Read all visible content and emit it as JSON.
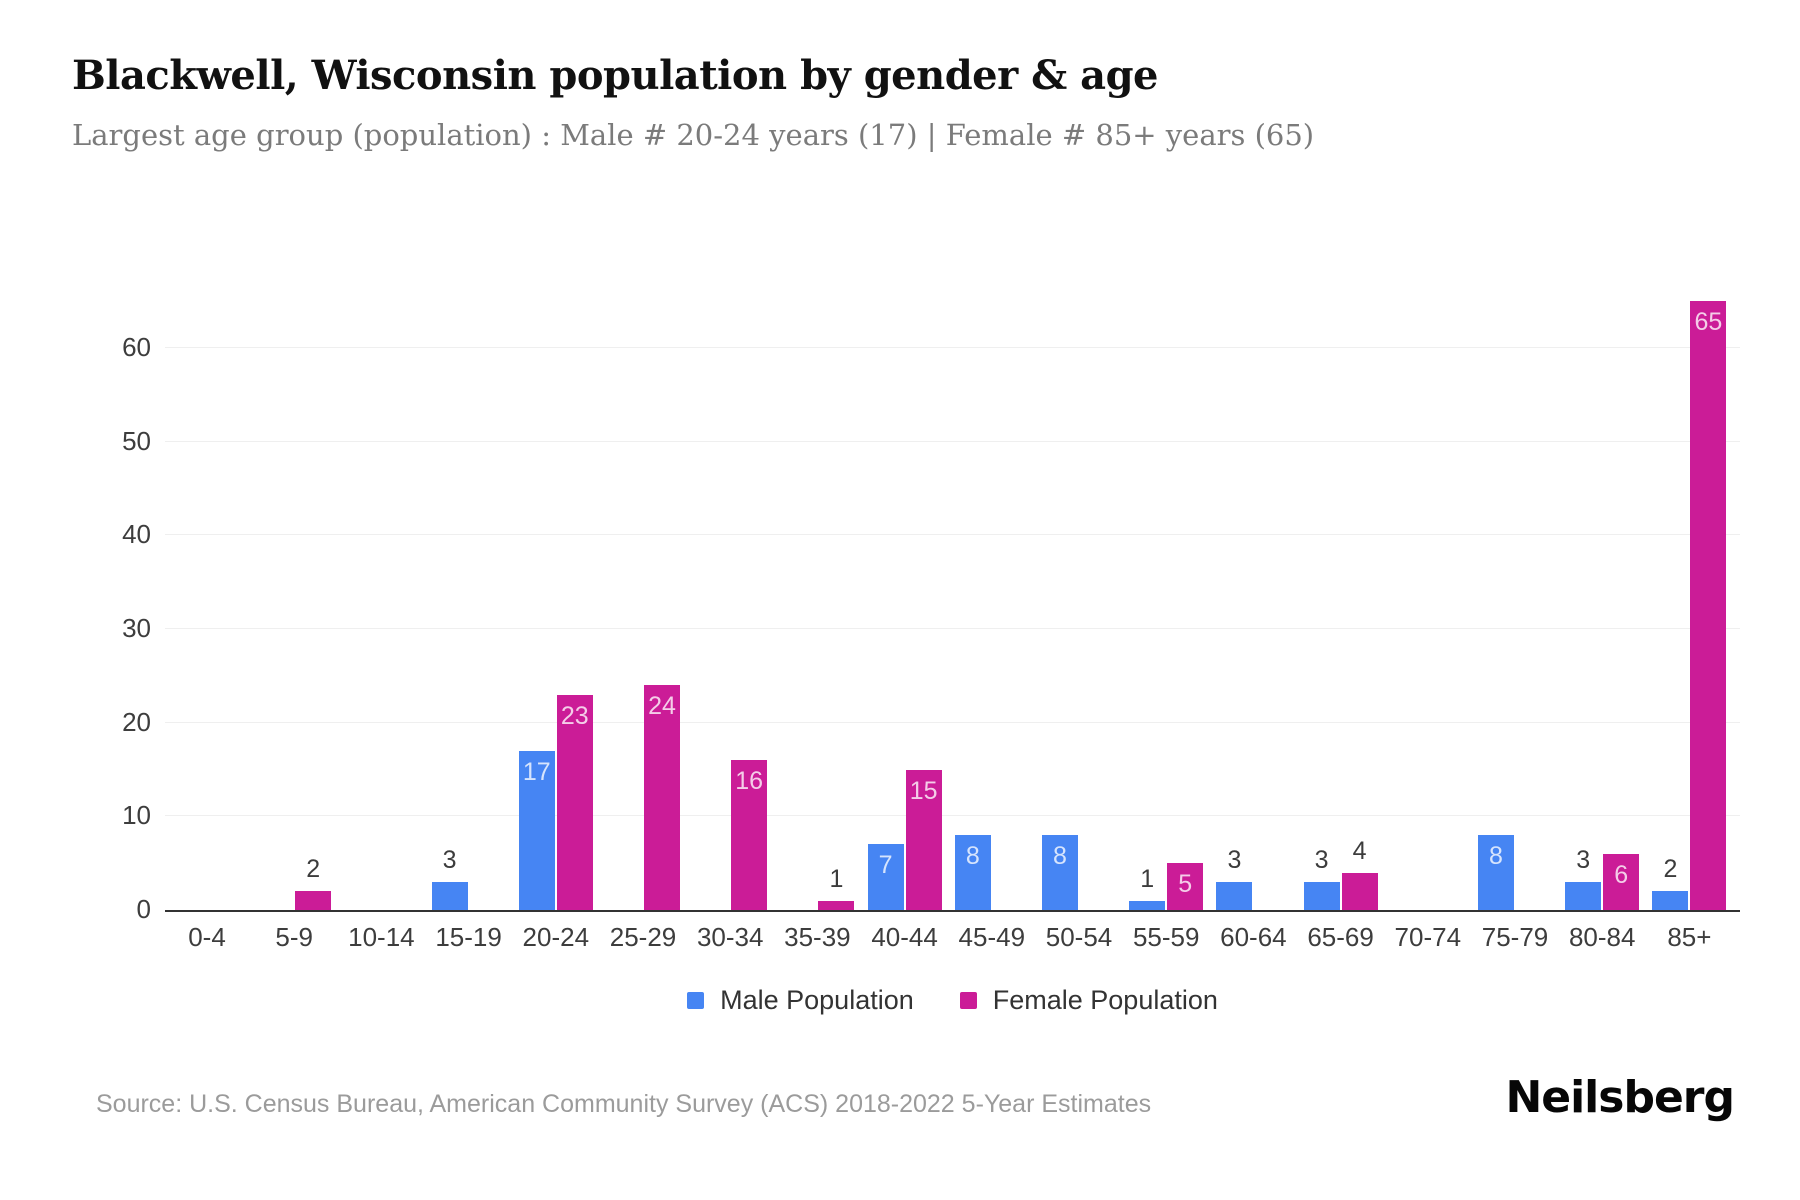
{
  "header": {
    "title": "Blackwell, Wisconsin population by gender & age",
    "subtitle": "Largest age group (population) : Male # 20-24 years (17) | Female # 85+ years (65)"
  },
  "chart_data": {
    "type": "bar",
    "title": "Blackwell, Wisconsin population by gender & age",
    "categories": [
      "0-4",
      "5-9",
      "10-14",
      "15-19",
      "20-24",
      "25-29",
      "30-34",
      "35-39",
      "40-44",
      "45-49",
      "50-54",
      "55-59",
      "60-64",
      "65-69",
      "70-74",
      "75-79",
      "80-84",
      "85+"
    ],
    "series": [
      {
        "name": "Male Population",
        "color": "#4685F3",
        "values": [
          0,
          0,
          0,
          3,
          17,
          0,
          0,
          0,
          7,
          8,
          8,
          1,
          3,
          3,
          0,
          8,
          3,
          2
        ]
      },
      {
        "name": "Female Population",
        "color": "#CB1C97",
        "values": [
          0,
          2,
          0,
          0,
          23,
          24,
          16,
          1,
          15,
          0,
          0,
          5,
          0,
          4,
          0,
          0,
          6,
          65
        ]
      }
    ],
    "xlabel": "",
    "ylabel": "",
    "y_ticks": [
      0,
      10,
      20,
      30,
      40,
      50,
      60
    ],
    "ylim": [
      0,
      65.66
    ],
    "grid": true,
    "legend_position": "bottom",
    "value_labels": "inside if value >= 5, above bar otherwise"
  },
  "legend": {
    "items": [
      {
        "label": "Male Population",
        "color": "#4685F3"
      },
      {
        "label": "Female Population",
        "color": "#CB1C97"
      }
    ]
  },
  "footer": {
    "source": "Source: U.S. Census Bureau, American Community Survey (ACS) 2018-2022 5-Year Estimates",
    "brand": "Neilsberg"
  },
  "colors": {
    "male": "#4685F3",
    "female": "#CB1C97",
    "axis_line": "#333333",
    "gridline": "#efefef",
    "tick_text": "#3d3d3d",
    "subtitle_text": "#7b7b7b"
  }
}
